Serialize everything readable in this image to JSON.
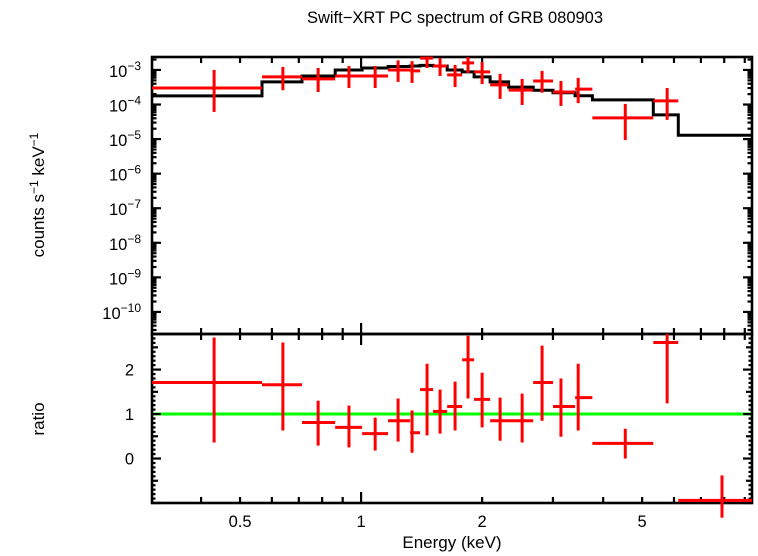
{
  "title": "Swift−XRT PC spectrum of GRB 080903",
  "colors": {
    "data": "#ff0000",
    "model": "#000000",
    "reference_line": "#00ff00",
    "axes": "#000000",
    "background": "#ffffff"
  },
  "chart_data": [
    {
      "type": "scatter",
      "panel": "spectrum",
      "ylabel": "counts s⁻¹ keV⁻¹",
      "ylabel_parts": [
        {
          "text": "counts s"
        },
        {
          "text": "−1",
          "sup": true
        },
        {
          "text": " keV"
        },
        {
          "text": "−1",
          "sup": true
        }
      ],
      "xscale": "log",
      "yscale": "log",
      "xlim": [
        0.302,
        9.38
      ],
      "ylim": [
        2.3e-11,
        0.00237
      ],
      "ytick_exponents": [
        -3,
        -4,
        -5,
        -6,
        -7,
        -8,
        -9,
        -10
      ],
      "grid": false,
      "model_step": {
        "bin_edges_keV": [
          0.302,
          0.567,
          0.713,
          0.862,
          1.006,
          1.167,
          1.324,
          1.402,
          1.51,
          1.637,
          1.784,
          1.91,
          2.094,
          2.327,
          2.679,
          3.001,
          3.407,
          3.76,
          5.33,
          6.15,
          9.38
        ],
        "values": [
          0.000178,
          0.00045,
          0.00067,
          0.001,
          0.00114,
          0.00126,
          0.0013,
          0.00135,
          0.0013,
          0.001,
          0.00088,
          0.00063,
          0.00045,
          0.00032,
          0.00026,
          0.00022,
          0.00018,
          0.000136,
          5e-05,
          1.3e-05
        ]
      },
      "points": [
        {
          "x": 0.431,
          "xlo": 0.302,
          "xhi": 0.567,
          "y": 0.0003,
          "ylo": 6.1e-05,
          "yhi": 0.001
        },
        {
          "x": 0.639,
          "xlo": 0.567,
          "xhi": 0.713,
          "y": 0.00063,
          "ylo": 0.00026,
          "yhi": 0.00122
        },
        {
          "x": 0.782,
          "xlo": 0.713,
          "xhi": 0.862,
          "y": 0.00055,
          "ylo": 0.00023,
          "yhi": 0.00114
        },
        {
          "x": 0.933,
          "xlo": 0.862,
          "xhi": 1.006,
          "y": 0.00067,
          "ylo": 0.0003,
          "yhi": 0.0013
        },
        {
          "x": 1.084,
          "xlo": 1.006,
          "xhi": 1.167,
          "y": 0.00067,
          "ylo": 0.0003,
          "yhi": 0.0013
        },
        {
          "x": 1.236,
          "xlo": 1.167,
          "xhi": 1.324,
          "y": 0.001,
          "ylo": 0.00045,
          "yhi": 0.0019
        },
        {
          "x": 1.339,
          "xlo": 1.324,
          "xhi": 1.402,
          "y": 0.00094,
          "ylo": 0.00042,
          "yhi": 0.0018
        },
        {
          "x": 1.459,
          "xlo": 1.402,
          "xhi": 1.51,
          "y": 0.0022,
          "ylo": 0.00114,
          "yhi": 0.00237
        },
        {
          "x": 1.572,
          "xlo": 1.51,
          "xhi": 1.637,
          "y": 0.0013,
          "ylo": 0.00067,
          "yhi": 0.0022
        },
        {
          "x": 1.713,
          "xlo": 1.637,
          "xhi": 1.784,
          "y": 0.00072,
          "ylo": 0.00032,
          "yhi": 0.0014
        },
        {
          "x": 1.845,
          "xlo": 1.784,
          "xhi": 1.91,
          "y": 0.0016,
          "ylo": 0.00082,
          "yhi": 0.00237
        },
        {
          "x": 2.0,
          "xlo": 1.91,
          "xhi": 2.094,
          "y": 0.00088,
          "ylo": 0.00039,
          "yhi": 0.0017
        },
        {
          "x": 2.217,
          "xlo": 2.094,
          "xhi": 2.327,
          "y": 0.00037,
          "ylo": 0.000145,
          "yhi": 0.00077
        },
        {
          "x": 2.515,
          "xlo": 2.327,
          "xhi": 2.679,
          "y": 0.00026,
          "ylo": 9.7e-05,
          "yhi": 0.00055
        },
        {
          "x": 2.819,
          "xlo": 2.679,
          "xhi": 3.001,
          "y": 0.00048,
          "ylo": 0.00022,
          "yhi": 0.00094
        },
        {
          "x": 3.141,
          "xlo": 3.001,
          "xhi": 3.407,
          "y": 0.00023,
          "ylo": 9.1e-05,
          "yhi": 0.00048
        },
        {
          "x": 3.467,
          "xlo": 3.407,
          "xhi": 3.76,
          "y": 0.00028,
          "ylo": 0.00011,
          "yhi": 0.00059
        },
        {
          "x": 4.54,
          "xlo": 3.76,
          "xhi": 5.33,
          "y": 4.1e-05,
          "ylo": 9.4e-06,
          "yhi": 0.000104
        },
        {
          "x": 5.77,
          "xlo": 5.33,
          "xhi": 6.15,
          "y": 0.000127,
          "ylo": 3.6e-05,
          "yhi": 0.0003
        }
      ]
    },
    {
      "type": "scatter",
      "panel": "ratio",
      "ylabel": "ratio",
      "xlabel": "Energy (keV)",
      "xscale": "log",
      "xlim": [
        0.302,
        9.38
      ],
      "ylim": [
        -1.0,
        2.8
      ],
      "yticks": [
        0,
        1,
        2
      ],
      "xticks": [
        {
          "value": 0.5,
          "label": "0.5"
        },
        {
          "value": 1,
          "label": "1"
        },
        {
          "value": 2,
          "label": "2"
        },
        {
          "value": 5,
          "label": "5"
        }
      ],
      "reference_line_y": 1,
      "grid": false,
      "points": [
        {
          "x": 0.431,
          "xlo": 0.302,
          "xhi": 0.567,
          "y": 1.71,
          "ylo": 0.36,
          "yhi": 2.72
        },
        {
          "x": 0.639,
          "xlo": 0.567,
          "xhi": 0.713,
          "y": 1.66,
          "ylo": 0.63,
          "yhi": 2.61
        },
        {
          "x": 0.782,
          "xlo": 0.713,
          "xhi": 0.862,
          "y": 0.81,
          "ylo": 0.29,
          "yhi": 1.3
        },
        {
          "x": 0.933,
          "xlo": 0.862,
          "xhi": 1.006,
          "y": 0.7,
          "ylo": 0.25,
          "yhi": 1.19
        },
        {
          "x": 1.084,
          "xlo": 1.006,
          "xhi": 1.167,
          "y": 0.56,
          "ylo": 0.18,
          "yhi": 0.92
        },
        {
          "x": 1.236,
          "xlo": 1.167,
          "xhi": 1.324,
          "y": 0.85,
          "ylo": 0.38,
          "yhi": 1.35
        },
        {
          "x": 1.339,
          "xlo": 1.324,
          "xhi": 1.402,
          "y": 0.58,
          "ylo": 0.13,
          "yhi": 1.08
        },
        {
          "x": 1.459,
          "xlo": 1.402,
          "xhi": 1.51,
          "y": 1.55,
          "ylo": 0.52,
          "yhi": 2.13
        },
        {
          "x": 1.572,
          "xlo": 1.51,
          "xhi": 1.637,
          "y": 1.06,
          "ylo": 0.56,
          "yhi": 1.55
        },
        {
          "x": 1.713,
          "xlo": 1.637,
          "xhi": 1.784,
          "y": 1.17,
          "ylo": 0.63,
          "yhi": 1.73
        },
        {
          "x": 1.845,
          "xlo": 1.784,
          "xhi": 1.91,
          "y": 2.22,
          "ylo": 1.35,
          "yhi": 2.76
        },
        {
          "x": 2.0,
          "xlo": 1.91,
          "xhi": 2.094,
          "y": 1.33,
          "ylo": 0.7,
          "yhi": 1.93
        },
        {
          "x": 2.217,
          "xlo": 2.094,
          "xhi": 2.327,
          "y": 0.85,
          "ylo": 0.4,
          "yhi": 1.37
        },
        {
          "x": 2.515,
          "xlo": 2.327,
          "xhi": 2.679,
          "y": 0.85,
          "ylo": 0.36,
          "yhi": 1.46
        },
        {
          "x": 2.819,
          "xlo": 2.679,
          "xhi": 3.001,
          "y": 1.71,
          "ylo": 0.85,
          "yhi": 2.54
        },
        {
          "x": 3.141,
          "xlo": 3.001,
          "xhi": 3.407,
          "y": 1.17,
          "ylo": 0.49,
          "yhi": 1.8
        },
        {
          "x": 3.467,
          "xlo": 3.407,
          "xhi": 3.76,
          "y": 1.37,
          "ylo": 0.63,
          "yhi": 2.13
        },
        {
          "x": 4.54,
          "xlo": 3.76,
          "xhi": 5.33,
          "y": 0.34,
          "ylo": 0.0,
          "yhi": 0.67
        },
        {
          "x": 5.77,
          "xlo": 5.33,
          "xhi": 6.15,
          "y": 2.61,
          "ylo": 1.24,
          "yhi": 2.8
        },
        {
          "x": 7.9,
          "xlo": 6.15,
          "xhi": 9.38,
          "y": -0.94,
          "ylo": -1.33,
          "yhi": -0.38
        }
      ]
    }
  ]
}
